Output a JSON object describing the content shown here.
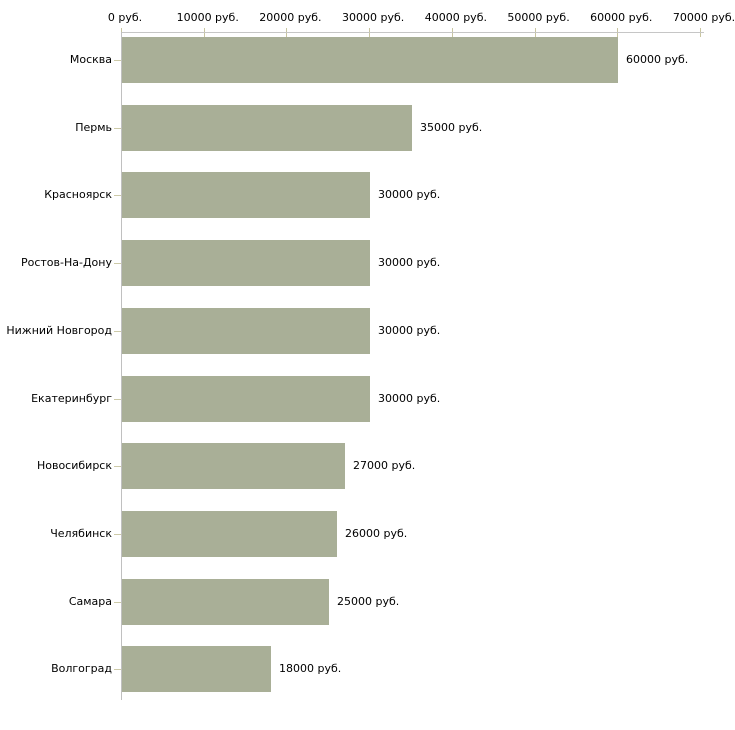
{
  "chart_data": {
    "type": "bar",
    "orientation": "horizontal",
    "title": "",
    "xlabel": "",
    "ylabel": "",
    "unit_suffix": " руб.",
    "categories": [
      "Москва",
      "Пермь",
      "Красноярск",
      "Ростов-На-Дону",
      "Нижний Новгород",
      "Екатеринбург",
      "Новосибирск",
      "Челябинск",
      "Самара",
      "Волгоград"
    ],
    "values": [
      60000,
      35000,
      30000,
      30000,
      30000,
      30000,
      27000,
      26000,
      25000,
      18000
    ],
    "value_labels": [
      "60000 руб.",
      "35000 руб.",
      "30000 руб.",
      "30000 руб.",
      "30000 руб.",
      "30000 руб.",
      "27000 руб.",
      "26000 руб.",
      "25000 руб.",
      "18000 руб."
    ],
    "x_tick_values": [
      0,
      10000,
      20000,
      30000,
      40000,
      50000,
      60000,
      70000
    ],
    "x_tick_labels": [
      "0 руб.",
      "10000 руб.",
      "20000 руб.",
      "30000 руб.",
      "40000 руб.",
      "50000 руб.",
      "60000 руб.",
      "70000 руб."
    ],
    "xlim": [
      0,
      70000
    ],
    "grid": false,
    "legend": null,
    "bar_color": "#a9af97",
    "axis_line_color": "#c6c6c6",
    "y_axis_line_color": "#c0c0c0",
    "tick_mark_color": "#c8c5a0",
    "text_color": "#000000",
    "background_color": "#ffffff"
  }
}
